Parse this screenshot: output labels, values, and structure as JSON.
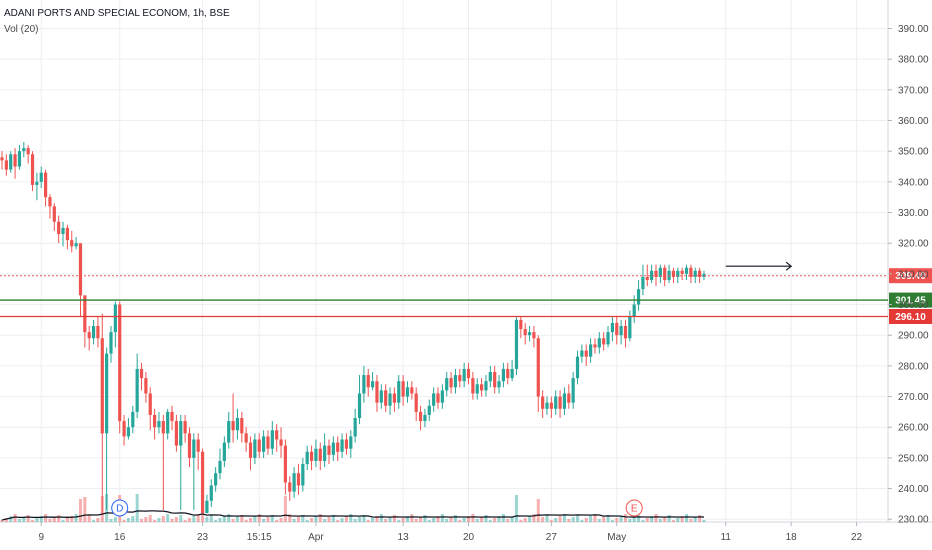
{
  "header": {
    "symbol_line": "ADANI PORTS AND SPECIAL ECONOM, 1h, BSE",
    "indicator_line": "Vol (20)"
  },
  "colors": {
    "up": "#26a69a",
    "down": "#ef5350",
    "grid": "#eceff2",
    "axis_text": "#4a4a4a",
    "last_price": "#ef5350",
    "support_green": "#2e7d32",
    "support_red": "#e53935"
  },
  "chart_data": {
    "type": "candlestick",
    "y_axis": {
      "min": 230,
      "max": 395,
      "ticks": [
        "230.00",
        "240.00",
        "250.00",
        "260.00",
        "270.00",
        "280.00",
        "290.00",
        "300.00",
        "310.00",
        "320.00",
        "330.00",
        "340.00",
        "350.00",
        "360.00",
        "370.00",
        "380.00",
        "390.00"
      ]
    },
    "x_axis": {
      "ticks": [
        {
          "label": "9",
          "bar": 9
        },
        {
          "label": "16",
          "bar": 27
        },
        {
          "label": "23",
          "bar": 46
        },
        {
          "label": "15:15",
          "bar": 59
        },
        {
          "label": "Apr",
          "bar": 72
        },
        {
          "label": "13",
          "bar": 92
        },
        {
          "label": "20",
          "bar": 107
        },
        {
          "label": "27",
          "bar": 126
        },
        {
          "label": "May",
          "bar": 141
        },
        {
          "label": "11",
          "bar": 166
        },
        {
          "label": "18",
          "bar": 181
        },
        {
          "label": "22",
          "bar": 196
        }
      ]
    },
    "price_labels": [
      {
        "value": 309.4,
        "text": "309.40",
        "kind": "last"
      },
      {
        "value": 301.45,
        "text": "301.45",
        "kind": "green"
      },
      {
        "value": 296.1,
        "text": "296.10",
        "kind": "red"
      }
    ],
    "markers": [
      {
        "text": "D",
        "bar": 27,
        "color": "#2962ff"
      },
      {
        "text": "E",
        "bar": 145,
        "color": "#ef5350"
      }
    ],
    "annotation_arrow": {
      "from_bar": 166,
      "to_bar": 181,
      "value": 312.5
    },
    "candles": [
      [
        348,
        347,
        350,
        344
      ],
      [
        347,
        344,
        349,
        342
      ],
      [
        344,
        349,
        350,
        343
      ],
      [
        349,
        345,
        351,
        341
      ],
      [
        345,
        350,
        352,
        344
      ],
      [
        350,
        351,
        353,
        348
      ],
      [
        351,
        349,
        352,
        346
      ],
      [
        349,
        339,
        350,
        337
      ],
      [
        339,
        340,
        343,
        334
      ],
      [
        340,
        343,
        345,
        338
      ],
      [
        343,
        335,
        344,
        332
      ],
      [
        335,
        332,
        336,
        328
      ],
      [
        332,
        327,
        333,
        324
      ],
      [
        327,
        323,
        329,
        320
      ],
      [
        323,
        325,
        327,
        319
      ],
      [
        325,
        321,
        326,
        318
      ],
      [
        321,
        319,
        324,
        317
      ],
      [
        319,
        320,
        322,
        318
      ],
      [
        320,
        303,
        304,
        296
      ],
      [
        303,
        291,
        299,
        286
      ],
      [
        291,
        289,
        293,
        285
      ],
      [
        289,
        293,
        295,
        287
      ],
      [
        293,
        289,
        296,
        286
      ],
      [
        289,
        258,
        297,
        232
      ],
      [
        258,
        284,
        286,
        233
      ],
      [
        284,
        291,
        293,
        281
      ],
      [
        291,
        300,
        301,
        286
      ],
      [
        300,
        262,
        301,
        258
      ],
      [
        262,
        257,
        264,
        254
      ],
      [
        257,
        260,
        263,
        256
      ],
      [
        260,
        265,
        267,
        258
      ],
      [
        265,
        279,
        284,
        263
      ],
      [
        279,
        276,
        281,
        272
      ],
      [
        276,
        271,
        278,
        268
      ],
      [
        271,
        264,
        273,
        259
      ],
      [
        264,
        260,
        266,
        256
      ],
      [
        260,
        262,
        265,
        258
      ],
      [
        262,
        258,
        264,
        233
      ],
      [
        258,
        265,
        266,
        256
      ],
      [
        265,
        262,
        267,
        259
      ],
      [
        262,
        254,
        264,
        252
      ],
      [
        254,
        262,
        264,
        233
      ],
      [
        262,
        258,
        264,
        255
      ],
      [
        258,
        250,
        260,
        247
      ],
      [
        250,
        256,
        258,
        233
      ],
      [
        256,
        252,
        258,
        246
      ],
      [
        252,
        232,
        253,
        232
      ],
      [
        232,
        236,
        238,
        232
      ],
      [
        236,
        241,
        243,
        234
      ],
      [
        241,
        245,
        247,
        239
      ],
      [
        245,
        249,
        253,
        243
      ],
      [
        249,
        255,
        257,
        247
      ],
      [
        255,
        262,
        265,
        253
      ],
      [
        262,
        259,
        271,
        255
      ],
      [
        259,
        263,
        266,
        256
      ],
      [
        263,
        258,
        265,
        255
      ],
      [
        258,
        255,
        260,
        252
      ],
      [
        255,
        250,
        257,
        246
      ],
      [
        250,
        256,
        258,
        248
      ],
      [
        256,
        252,
        258,
        250
      ],
      [
        252,
        257,
        259,
        250
      ],
      [
        257,
        253,
        259,
        251
      ],
      [
        253,
        259,
        262,
        251
      ],
      [
        259,
        256,
        261,
        252
      ],
      [
        256,
        254,
        260,
        250
      ],
      [
        254,
        242,
        256,
        238
      ],
      [
        242,
        239,
        244,
        236
      ],
      [
        239,
        245,
        247,
        237
      ],
      [
        245,
        241,
        248,
        238
      ],
      [
        241,
        248,
        250,
        239
      ],
      [
        248,
        252,
        254,
        246
      ],
      [
        252,
        249,
        254,
        246
      ],
      [
        249,
        253,
        256,
        247
      ],
      [
        253,
        249,
        255,
        246
      ],
      [
        249,
        254,
        258,
        247
      ],
      [
        254,
        251,
        256,
        248
      ],
      [
        251,
        255,
        257,
        249
      ],
      [
        255,
        252,
        257,
        249
      ],
      [
        252,
        256,
        258,
        250
      ],
      [
        256,
        253,
        258,
        251
      ],
      [
        253,
        257,
        259,
        250
      ],
      [
        257,
        263,
        266,
        255
      ],
      [
        263,
        271,
        277,
        261
      ],
      [
        271,
        277,
        280,
        268
      ],
      [
        277,
        273,
        279,
        270
      ],
      [
        273,
        275,
        278,
        272
      ],
      [
        275,
        268,
        277,
        265
      ],
      [
        268,
        272,
        274,
        266
      ],
      [
        272,
        267,
        274,
        265
      ],
      [
        267,
        271,
        273,
        264
      ],
      [
        271,
        268,
        273,
        265
      ],
      [
        268,
        275,
        277,
        266
      ],
      [
        275,
        270,
        277,
        267
      ],
      [
        270,
        273,
        275,
        268
      ],
      [
        273,
        271,
        275,
        269
      ],
      [
        271,
        265,
        273,
        262
      ],
      [
        265,
        262,
        267,
        259
      ],
      [
        262,
        264,
        266,
        260
      ],
      [
        264,
        267,
        269,
        262
      ],
      [
        267,
        271,
        273,
        265
      ],
      [
        271,
        268,
        273,
        266
      ],
      [
        268,
        272,
        274,
        266
      ],
      [
        272,
        276,
        278,
        270
      ],
      [
        276,
        273,
        278,
        271
      ],
      [
        273,
        277,
        279,
        271
      ],
      [
        277,
        275,
        279,
        273
      ],
      [
        275,
        279,
        281,
        273
      ],
      [
        279,
        276,
        281,
        274
      ],
      [
        276,
        271,
        278,
        269
      ],
      [
        271,
        274,
        276,
        269
      ],
      [
        274,
        272,
        276,
        270
      ],
      [
        272,
        275,
        277,
        270
      ],
      [
        275,
        278,
        280,
        273
      ],
      [
        278,
        273,
        280,
        271
      ],
      [
        273,
        275,
        277,
        271
      ],
      [
        275,
        279,
        281,
        273
      ],
      [
        279,
        276,
        281,
        274
      ],
      [
        276,
        279,
        282,
        275
      ],
      [
        279,
        295,
        296,
        277
      ],
      [
        295,
        292,
        296,
        289
      ],
      [
        292,
        290,
        294,
        287
      ],
      [
        290,
        291,
        293,
        288
      ],
      [
        291,
        289,
        293,
        286
      ],
      [
        289,
        270,
        290,
        265
      ],
      [
        270,
        266,
        272,
        263
      ],
      [
        266,
        268,
        270,
        264
      ],
      [
        268,
        266,
        270,
        263
      ],
      [
        266,
        270,
        272,
        264
      ],
      [
        270,
        266,
        272,
        263
      ],
      [
        266,
        271,
        273,
        264
      ],
      [
        271,
        268,
        274,
        266
      ],
      [
        268,
        276,
        278,
        266
      ],
      [
        276,
        283,
        285,
        274
      ],
      [
        283,
        285,
        287,
        281
      ],
      [
        285,
        283,
        287,
        280
      ],
      [
        283,
        287,
        289,
        281
      ],
      [
        287,
        286,
        289,
        284
      ],
      [
        286,
        289,
        291,
        284
      ],
      [
        289,
        287,
        291,
        285
      ],
      [
        287,
        291,
        293,
        286
      ],
      [
        291,
        294,
        296,
        288
      ],
      [
        294,
        290,
        296,
        287
      ],
      [
        290,
        293,
        295,
        287
      ],
      [
        293,
        289,
        295,
        286
      ],
      [
        289,
        296,
        298,
        288
      ],
      [
        296,
        300,
        303,
        294
      ],
      [
        300,
        305,
        308,
        298
      ],
      [
        305,
        309,
        313,
        303
      ],
      [
        309,
        308,
        313,
        306
      ],
      [
        308,
        311,
        313,
        307
      ],
      [
        311,
        309,
        313,
        306
      ],
      [
        309,
        312,
        313,
        307
      ],
      [
        312,
        308,
        313,
        306
      ],
      [
        308,
        311,
        313,
        307
      ],
      [
        311,
        309,
        312,
        307
      ],
      [
        309,
        311,
        312,
        307
      ],
      [
        311,
        310,
        312,
        308
      ],
      [
        310,
        312,
        313,
        308
      ],
      [
        312,
        309,
        313,
        307
      ],
      [
        309,
        311,
        312,
        307
      ],
      [
        311,
        309,
        312,
        307
      ],
      [
        309,
        310,
        311,
        308
      ]
    ]
  }
}
